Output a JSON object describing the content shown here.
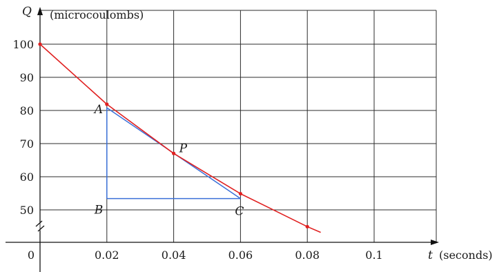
{
  "chart_data": {
    "type": "line",
    "x_axis": {
      "variable": "t",
      "unit_label": "(seconds)",
      "ticks": [
        0.02,
        0.04,
        0.06,
        0.08,
        0.1
      ],
      "tick_labels": [
        "0.02",
        "0.04",
        "0.06",
        "0.08",
        "0.1"
      ],
      "origin_label": "0",
      "range": [
        0,
        0.12
      ]
    },
    "y_axis": {
      "variable": "Q",
      "unit_label": "(microcoulombs)",
      "ticks": [
        50,
        60,
        70,
        80,
        90,
        100
      ],
      "tick_labels": [
        "50",
        "60",
        "70",
        "80",
        "90",
        "100"
      ],
      "range": [
        40,
        110
      ],
      "axis_break": true
    },
    "series": [
      {
        "color": "#e02020",
        "x": [
          0,
          0.02,
          0.04,
          0.06,
          0.08,
          0.084
        ],
        "y": [
          100,
          81.87,
          67.03,
          54.88,
          44.93,
          43.2
        ],
        "markers_at": [
          0,
          0.02,
          0.04,
          0.06,
          0.08
        ]
      }
    ],
    "tangent": {
      "color": "#3a6fd8",
      "from": [
        0.02,
        80.8
      ],
      "to": [
        0.06,
        53.4
      ]
    },
    "triangle": {
      "color": "#3a6fd8",
      "points": [
        [
          0.02,
          80.8
        ],
        [
          0.02,
          53.4
        ],
        [
          0.06,
          53.4
        ]
      ]
    },
    "annotations": [
      {
        "text": "A",
        "x": 0.02,
        "y": 80.8
      },
      {
        "text": "B",
        "x": 0.02,
        "y": 53.4
      },
      {
        "text": "C",
        "x": 0.06,
        "y": 53.4
      },
      {
        "text": "P",
        "x": 0.04,
        "y": 67.03
      }
    ],
    "grid": true
  }
}
